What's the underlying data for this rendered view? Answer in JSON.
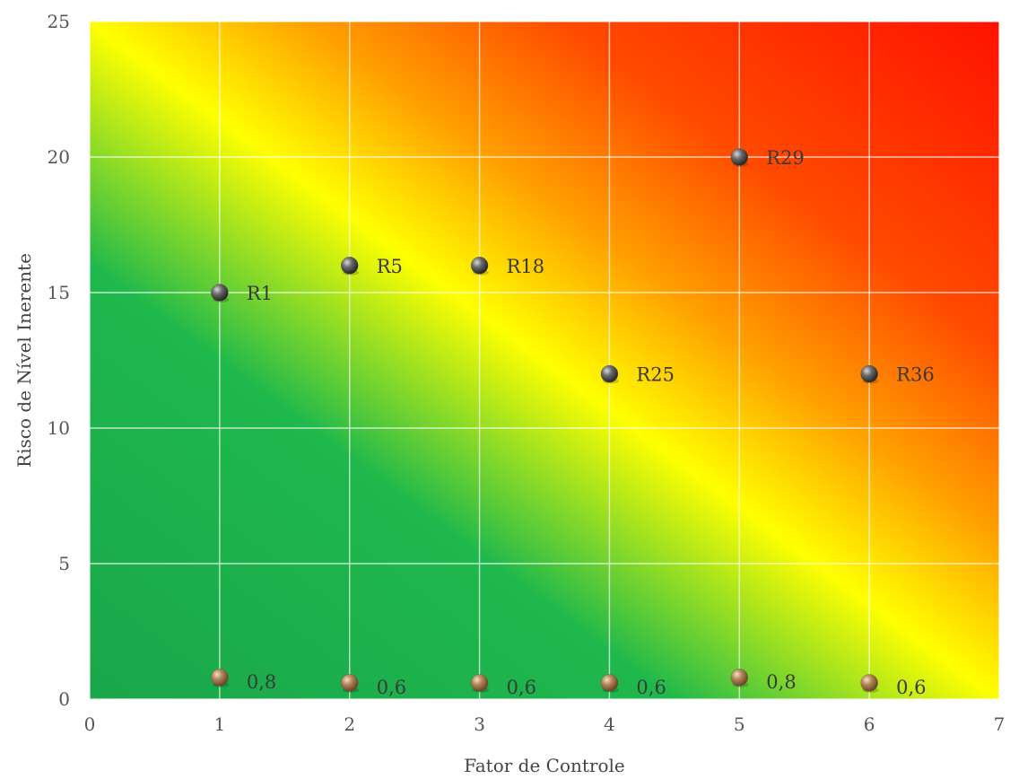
{
  "chart_data": {
    "type": "scatter",
    "title": "",
    "xlabel": "Fator de Controle",
    "ylabel": "Risco de Nível Inerente",
    "xlim": [
      0,
      7
    ],
    "ylim": [
      0,
      25
    ],
    "x_ticks": [
      "0",
      "1",
      "2",
      "3",
      "4",
      "5",
      "6",
      "7"
    ],
    "y_ticks": [
      "0",
      "5",
      "10",
      "15",
      "20",
      "25"
    ],
    "grid": true,
    "background_gradient": {
      "direction": "low-left green to high-right red",
      "colors": [
        "#1aa64b",
        "#1fb84c",
        "#ffff00",
        "#ffa000",
        "#ff4a00",
        "#ff1200"
      ]
    },
    "series": [
      {
        "marker_color": "#5a5a5a",
        "points": [
          {
            "x": 1,
            "y": 15,
            "label": "R1"
          },
          {
            "x": 2,
            "y": 16,
            "label": "R5"
          },
          {
            "x": 3,
            "y": 16,
            "label": "R18"
          },
          {
            "x": 4,
            "y": 12,
            "label": "R25"
          },
          {
            "x": 5,
            "y": 20,
            "label": "R29"
          },
          {
            "x": 6,
            "y": 12,
            "label": "R36"
          }
        ]
      },
      {
        "marker_color": "#b5875a",
        "points": [
          {
            "x": 1,
            "y": 0.8,
            "label": "0,8"
          },
          {
            "x": 2,
            "y": 0.6,
            "label": "0,6"
          },
          {
            "x": 3,
            "y": 0.6,
            "label": "0,6"
          },
          {
            "x": 4,
            "y": 0.6,
            "label": "0,6"
          },
          {
            "x": 5,
            "y": 0.8,
            "label": "0,8"
          },
          {
            "x": 6,
            "y": 0.6,
            "label": "0,6"
          }
        ]
      }
    ]
  }
}
